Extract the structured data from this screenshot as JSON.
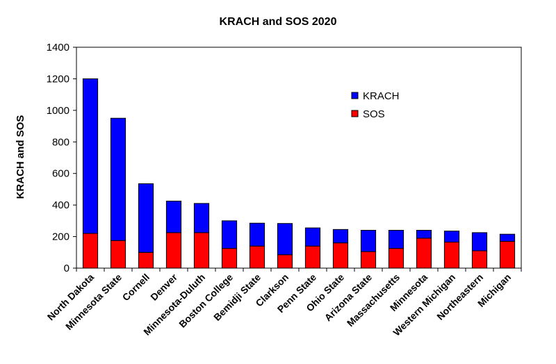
{
  "chart_data": {
    "type": "bar",
    "stacked": true,
    "title": "KRACH and SOS 2020",
    "xlabel": "",
    "ylabel": "KRACH and SOS",
    "ylim": [
      0,
      1400
    ],
    "yticks": [
      0,
      200,
      400,
      600,
      800,
      1000,
      1200,
      1400
    ],
    "grid": false,
    "legend_position": "top-right",
    "categories": [
      "North Dakota",
      "Minnesota State",
      "Cornell",
      "Denver",
      "Minnesota-Duluth",
      "Boston College",
      "Bemidji State",
      "Clarkson",
      "Penn State",
      "Ohio State",
      "Arizona State",
      "Massachusetts",
      "Minnesota",
      "Western Michigan",
      "Northeastern",
      "Michigan"
    ],
    "series": [
      {
        "name": "SOS",
        "color": "#ff0000",
        "values": [
          220,
          175,
          100,
          225,
          225,
          125,
          140,
          85,
          140,
          160,
          105,
          125,
          190,
          165,
          110,
          170
        ]
      },
      {
        "name": "KRACH",
        "color": "#0000ff",
        "values": [
          980,
          775,
          435,
          200,
          185,
          175,
          145,
          198,
          115,
          85,
          135,
          115,
          50,
          70,
          115,
          45
        ]
      }
    ],
    "legend_order": [
      "KRACH",
      "SOS"
    ]
  }
}
